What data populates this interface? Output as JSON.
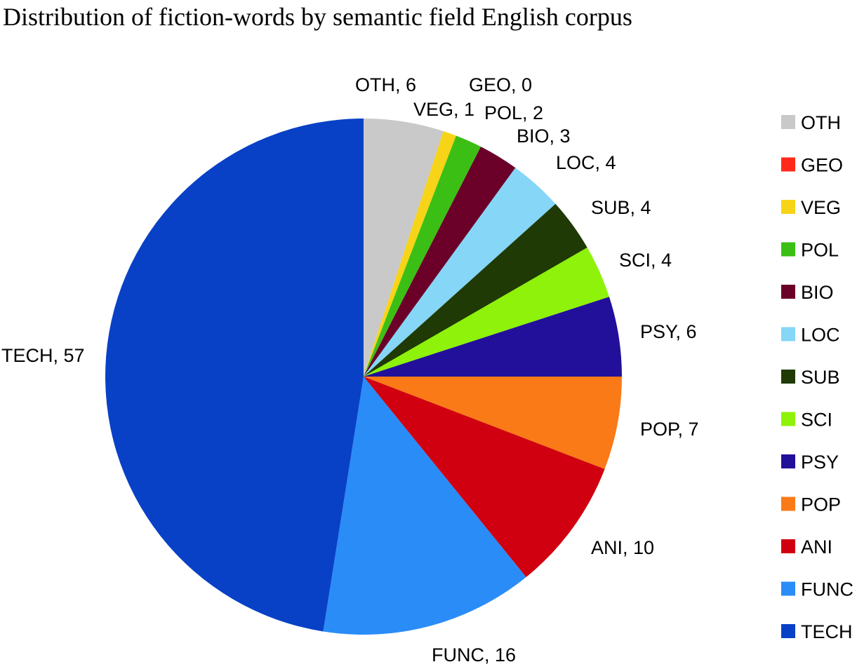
{
  "chart_data": {
    "type": "pie",
    "title": "Distribution of fiction-words by semantic field English corpus",
    "legend_position": "right",
    "slices": [
      {
        "label": "OTH",
        "value": 6,
        "color": "#c9c9c9"
      },
      {
        "label": "GEO",
        "value": 0,
        "color": "#ff2a1a"
      },
      {
        "label": "VEG",
        "value": 1,
        "color": "#f7d417"
      },
      {
        "label": "POL",
        "value": 2,
        "color": "#3cbf14"
      },
      {
        "label": "BIO",
        "value": 3,
        "color": "#6b0029"
      },
      {
        "label": "LOC",
        "value": 4,
        "color": "#85d6f7"
      },
      {
        "label": "SUB",
        "value": 4,
        "color": "#1f3a05"
      },
      {
        "label": "SCI",
        "value": 4,
        "color": "#8ef20a"
      },
      {
        "label": "PSY",
        "value": 6,
        "color": "#22109a"
      },
      {
        "label": "POP",
        "value": 7,
        "color": "#fa7a17"
      },
      {
        "label": "ANI",
        "value": 10,
        "color": "#d00010"
      },
      {
        "label": "FUNC",
        "value": 16,
        "color": "#2a8cf7"
      },
      {
        "label": "TECH",
        "value": 57,
        "color": "#0841c6"
      }
    ]
  }
}
